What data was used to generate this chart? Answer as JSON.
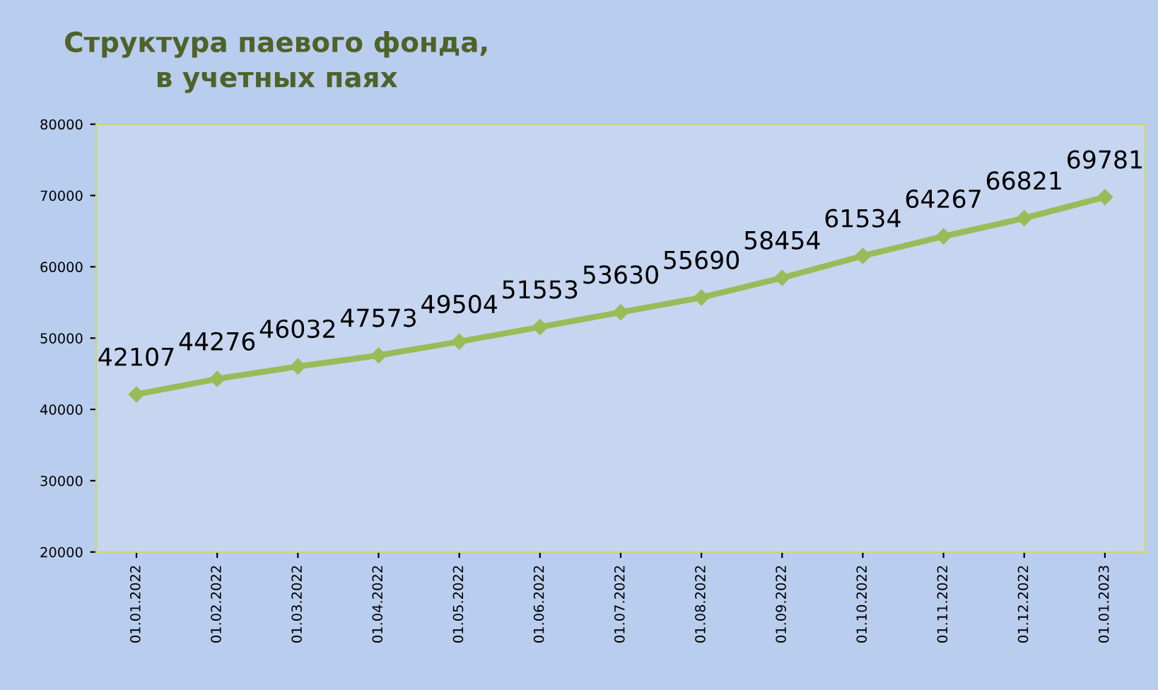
{
  "chart_data": {
    "type": "line",
    "title": "Структура паевого фонда,\nв учетных паях",
    "categories": [
      "01.01.2022",
      "01.02.2022",
      "01.03.2022",
      "01.04.2022",
      "01.05.2022",
      "01.06.2022",
      "01.07.2022",
      "01.08.2022",
      "01.09.2022",
      "01.10.2022",
      "01.11.2022",
      "01.12.2022",
      "01.01.2023"
    ],
    "series": [
      {
        "color": "#9bbb59",
        "values": [
          42107,
          44276,
          46032,
          47573,
          49504,
          51553,
          53630,
          55690,
          58454,
          61534,
          64267,
          66821,
          69781
        ]
      }
    ],
    "ylim": [
      20000,
      80000
    ],
    "yticks": [
      20000,
      30000,
      40000,
      50000,
      60000,
      70000,
      80000
    ],
    "grid": false,
    "legend": false,
    "marker": "diamond",
    "line_style": "solid",
    "data_labels": true
  }
}
